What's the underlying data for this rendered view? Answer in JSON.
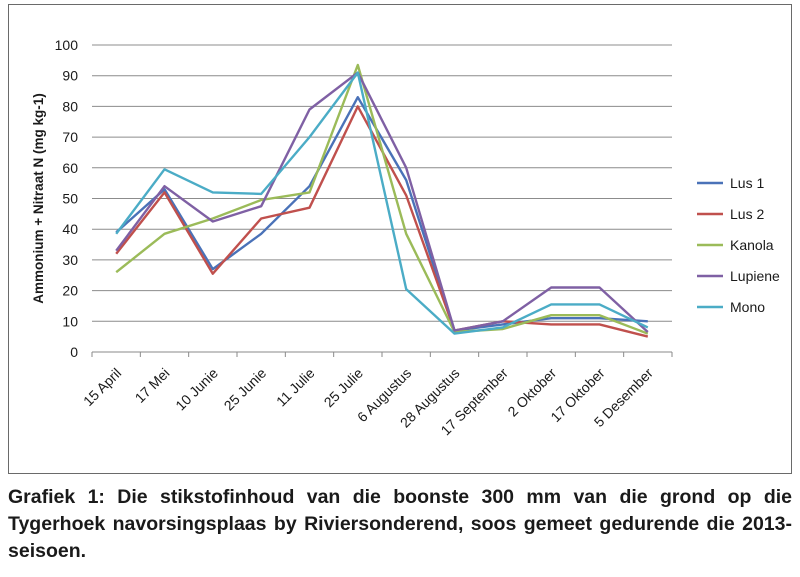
{
  "chart_data": {
    "type": "line",
    "ylabel": "Ammonium + Nitraat N (mg kg-1)",
    "xlabel": "",
    "ylim": [
      0,
      100
    ],
    "yticks": [
      0,
      10,
      20,
      30,
      40,
      50,
      60,
      70,
      80,
      90,
      100
    ],
    "grid": "horizontal",
    "legend_position": "right",
    "categories": [
      "15 April",
      "17 Mei",
      "10 Junie",
      "25 Junie",
      "11 Julie",
      "25 Julie",
      "6 Augustus",
      "28 Augustus",
      "17 September",
      "2 Oktober",
      "17 Oktober",
      "5 Desember"
    ],
    "series": [
      {
        "name": "Lus 1",
        "color": "#4a72b8",
        "values": [
          39,
          53,
          27,
          38.5,
          54,
          83,
          56,
          7,
          9,
          11,
          11,
          10
        ]
      },
      {
        "name": "Lus 2",
        "color": "#c0504d",
        "values": [
          32,
          52,
          25.5,
          43.5,
          47,
          80,
          51,
          7,
          10,
          9,
          9,
          5
        ]
      },
      {
        "name": "Kanola",
        "color": "#9bbb59",
        "values": [
          26,
          38.5,
          43.5,
          49.5,
          52,
          93.5,
          38.5,
          6.5,
          7.5,
          12,
          12,
          6
        ]
      },
      {
        "name": "Lupiene",
        "color": "#7f60a4",
        "values": [
          33,
          54,
          42.5,
          47.5,
          79,
          91,
          60,
          7,
          10,
          21,
          21,
          6.5
        ]
      },
      {
        "name": "Mono",
        "color": "#4bacc6",
        "values": [
          38.5,
          59.5,
          52,
          51.5,
          70,
          91,
          20.5,
          6,
          8,
          15.5,
          15.5,
          8
        ]
      }
    ]
  },
  "caption": "Grafiek 1: Die stikstofinhoud van die boonste 300 mm van die grond op die Tygerhoek navorsingsplaas by Riviersonderend, soos gemeet gedurende die 2013-seisoen."
}
